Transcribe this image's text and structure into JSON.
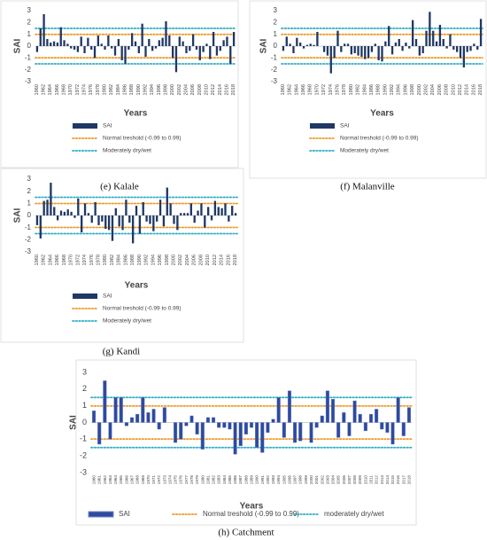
{
  "chart_data": [
    {
      "type": "bar",
      "caption": "(e) Kalale",
      "x_label": "Years",
      "y_label": "SAI",
      "categories": [
        1960,
        null,
        1962,
        null,
        1964,
        null,
        1966,
        null,
        1968,
        null,
        1970,
        null,
        1972,
        null,
        1974,
        null,
        1976,
        null,
        1978,
        null,
        1980,
        null,
        1982,
        null,
        1984,
        null,
        1986,
        null,
        1988,
        null,
        1990,
        null,
        1992,
        null,
        1994,
        null,
        1996,
        null,
        1998,
        null,
        2000,
        null,
        2002,
        null,
        2004,
        null,
        2006,
        null,
        2008,
        null,
        2010,
        null,
        2012,
        null,
        2014,
        null,
        2016,
        null,
        2018
      ],
      "series": [
        {
          "name": "SAI",
          "color": "#1f3864",
          "values": [
            -0.5,
            1.5,
            2.7,
            0.6,
            0.3,
            0.4,
            0.3,
            1.6,
            0.5,
            0.2,
            -0.2,
            -0.3,
            -0.5,
            0.8,
            -0.6,
            0.7,
            -0.3,
            -1.0,
            0.9,
            0.2,
            -0.3,
            0.9,
            -0.2,
            -0.8,
            0.6,
            -1.2,
            -1.5,
            -0.3,
            1.1,
            0.4,
            -0.6,
            1.9,
            -0.9,
            0.6,
            -0.4,
            -0.2,
            0.5,
            0.7,
            2.1,
            0.9,
            -1.0,
            -2.2,
            0.8,
            0.4,
            -0.6,
            -0.4,
            1.0,
            -0.3,
            -1.2,
            -0.5,
            0.2,
            -1.1,
            1.2,
            -0.8,
            -0.4,
            0.5,
            0.8,
            -1.5,
            1.2
          ]
        }
      ],
      "reference_lines": [
        {
          "name": "Normal treshold (-0.99 to 0.99)",
          "color": "#ee9a2a",
          "values": [
            -0.99,
            0.99
          ]
        },
        {
          "name": "Moderately dry/wet",
          "color": "#2aaec8",
          "values": [
            -1.5,
            1.5
          ]
        }
      ],
      "ylim": [
        -3,
        3
      ],
      "yticks": [
        -3,
        -2,
        -1,
        0,
        1,
        2,
        3
      ],
      "grid": false
    },
    {
      "type": "bar",
      "caption": "(f) Malanville",
      "x_label": "Years",
      "y_label": "SAI",
      "categories": [
        1960,
        null,
        1962,
        null,
        1964,
        null,
        1966,
        null,
        1968,
        null,
        1970,
        null,
        1972,
        null,
        1974,
        null,
        1976,
        null,
        1978,
        null,
        1980,
        null,
        1982,
        null,
        1984,
        null,
        1986,
        null,
        1988,
        null,
        1990,
        null,
        1992,
        null,
        1994,
        null,
        1996,
        null,
        1998,
        null,
        2000,
        null,
        2002,
        null,
        2004,
        null,
        2006,
        null,
        2008,
        null,
        2010,
        null,
        2012,
        null,
        2014,
        null,
        2016,
        null,
        2018
      ],
      "series": [
        {
          "name": "SAI",
          "color": "#1f3864",
          "values": [
            -0.4,
            0.8,
            0.2,
            -0.6,
            0.7,
            0.3,
            -0.2,
            0.1,
            0.2,
            0.1,
            1.2,
            0.0,
            -0.5,
            -0.8,
            -2.3,
            -1.0,
            1.3,
            -0.5,
            0.2,
            0.2,
            -0.7,
            -0.6,
            -0.8,
            -0.9,
            -1.1,
            -1.0,
            -0.5,
            0.2,
            -1.2,
            -1.3,
            0.4,
            1.7,
            -0.7,
            0.3,
            0.6,
            -0.4,
            0.3,
            -0.2,
            2.2,
            0.6,
            -0.8,
            -0.6,
            1.3,
            2.9,
            1.3,
            0.4,
            1.8,
            0.6,
            -0.2,
            1.0,
            -0.3,
            -0.5,
            -1.0,
            -1.8,
            -0.5,
            -0.4,
            0.2,
            -0.3,
            2.3
          ]
        }
      ],
      "reference_lines": [
        {
          "name": "Normal treshold (-0.99 to 0.99)",
          "color": "#ee9a2a",
          "values": [
            -0.99,
            0.99
          ]
        },
        {
          "name": "Moderately dry/wet",
          "color": "#2aaec8",
          "values": [
            -1.5,
            1.5
          ]
        }
      ],
      "ylim": [
        -3,
        3
      ],
      "yticks": [
        -3,
        -2,
        -1,
        0,
        1,
        2,
        3
      ],
      "grid": false
    },
    {
      "type": "bar",
      "caption": "(g) Kandi",
      "x_label": "Years",
      "y_label": "SAI",
      "categories": [
        1960,
        null,
        1962,
        null,
        1964,
        null,
        1966,
        null,
        1968,
        null,
        1970,
        null,
        1972,
        null,
        1974,
        null,
        1976,
        null,
        1978,
        null,
        1980,
        null,
        1982,
        null,
        1984,
        null,
        1986,
        null,
        1988,
        null,
        1990,
        null,
        1992,
        null,
        1994,
        null,
        1996,
        null,
        1998,
        null,
        2000,
        null,
        2002,
        null,
        2004,
        null,
        2006,
        null,
        2008,
        null,
        2010,
        null,
        2012,
        null,
        2014,
        null,
        2016,
        null,
        2018
      ],
      "series": [
        {
          "name": "SAI",
          "color": "#1f3864",
          "values": [
            -0.8,
            -1.9,
            1.2,
            1.3,
            2.7,
            0.7,
            -0.4,
            0.4,
            0.3,
            0.5,
            0.3,
            -0.2,
            1.4,
            -1.4,
            1.0,
            0.2,
            -0.6,
            1.1,
            -0.8,
            -0.5,
            -1.1,
            -1.2,
            -2.1,
            0.6,
            -0.9,
            -1.2,
            1.3,
            -0.6,
            -2.3,
            0.8,
            -1.5,
            1.1,
            -0.5,
            -0.7,
            -1.3,
            -0.5,
            1.3,
            -0.9,
            2.3,
            1.0,
            -0.7,
            -1.2,
            0.2,
            0.2,
            0.2,
            1.0,
            -0.6,
            0.4,
            1.0,
            -1.0,
            0.7,
            -0.4,
            1.2,
            0.7,
            0.6,
            1.0,
            -0.5,
            0.8,
            0.2
          ]
        }
      ],
      "reference_lines": [
        {
          "name": "Normal treshold (-0.99 to 0.99)",
          "color": "#ee9a2a",
          "values": [
            -0.99,
            0.99
          ]
        },
        {
          "name": "Moderately dry/wet",
          "color": "#2aaec8",
          "values": [
            -1.5,
            1.5
          ]
        }
      ],
      "ylim": [
        -3,
        3
      ],
      "yticks": [
        -3,
        -2,
        -1,
        0,
        1,
        2,
        3
      ],
      "grid": false
    },
    {
      "type": "bar",
      "caption": "(h) Catchment",
      "x_label": "Years",
      "y_label": "SAI",
      "categories": [
        1960,
        1961,
        1962,
        1963,
        1964,
        1965,
        1966,
        1967,
        1968,
        1969,
        1970,
        1971,
        1972,
        1973,
        1974,
        1975,
        1976,
        1977,
        1978,
        1979,
        1980,
        1981,
        1982,
        1983,
        1984,
        1985,
        1986,
        1987,
        1988,
        1989,
        1990,
        1991,
        1992,
        1993,
        1994,
        1995,
        1996,
        1997,
        1998,
        1999,
        2000,
        2001,
        2002,
        2003,
        2004,
        2005,
        2006,
        2007,
        2008,
        2009,
        2010,
        2011,
        2012,
        2013,
        2014,
        2015,
        2016,
        2017,
        2018
      ],
      "series": [
        {
          "name": "SAI",
          "color": "#2e4a9e",
          "values": [
            0.7,
            -1.3,
            2.5,
            -1.0,
            1.5,
            1.5,
            -0.2,
            0.3,
            0.5,
            1.5,
            0.6,
            0.8,
            -0.4,
            0.9,
            0.0,
            -1.2,
            -1.0,
            -0.2,
            0.4,
            -0.7,
            -1.6,
            0.3,
            0.3,
            -0.3,
            -0.3,
            -0.4,
            -1.9,
            -1.4,
            -0.7,
            -0.3,
            -1.5,
            -1.8,
            -0.6,
            0.2,
            1.5,
            -0.9,
            1.9,
            -1.2,
            -1.1,
            0.0,
            -1.2,
            -0.3,
            0.4,
            1.9,
            1.4,
            -0.9,
            0.6,
            -0.8,
            1.3,
            0.5,
            -0.5,
            0.5,
            0.8,
            -0.4,
            -0.6,
            -1.3,
            1.5,
            -0.8,
            0.9
          ]
        }
      ],
      "reference_lines": [
        {
          "name": "Normal treshold (-0.99 to 0.99)",
          "color": "#ee9a2a",
          "values": [
            -0.99,
            0.99
          ]
        },
        {
          "name": "moderately dry/wet",
          "color": "#2aaec8",
          "values": [
            -1.5,
            1.5
          ]
        }
      ],
      "ylim": [
        -3,
        3
      ],
      "yticks": [
        -3,
        -2,
        -1,
        0,
        1,
        2,
        3
      ],
      "grid": false
    }
  ]
}
